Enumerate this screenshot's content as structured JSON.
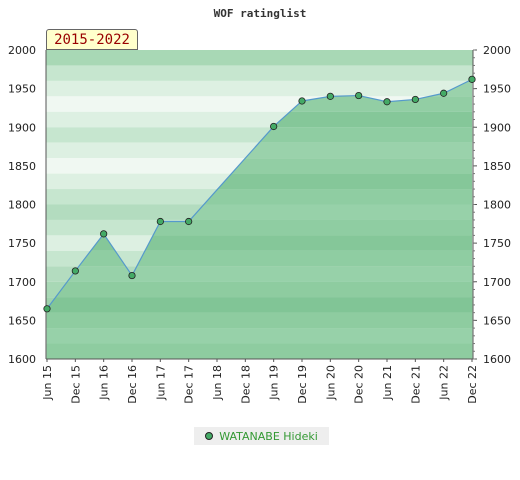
{
  "chart_data": {
    "type": "area",
    "title": "WOF ratinglist",
    "period": "2015-2022",
    "x": [
      "Jun 15",
      "Dec 15",
      "Jun 16",
      "Dec 16",
      "Jun 17",
      "Dec 17",
      "Jun 18",
      "Dec 18",
      "Jun 19",
      "Dec 19",
      "Jun 20",
      "Dec 20",
      "Jun 21",
      "Dec 21",
      "Jun 22",
      "Dec 22"
    ],
    "ylim": [
      1600,
      2000
    ],
    "yticks": [
      1600,
      1650,
      1700,
      1750,
      1800,
      1850,
      1900,
      1950,
      2000
    ],
    "series": [
      {
        "name": "WATANABE Hideki",
        "values": [
          1665,
          1714,
          1762,
          1708,
          1778,
          1778,
          null,
          null,
          1901,
          1934,
          1940,
          1941,
          1933,
          1936,
          1944,
          1962
        ]
      }
    ],
    "colors": {
      "area_fill": "#7fc495",
      "line": "#5599cc",
      "marker": "#44aa66",
      "legend_text": "#339933"
    },
    "grid": true,
    "legend_position": "bottom"
  }
}
